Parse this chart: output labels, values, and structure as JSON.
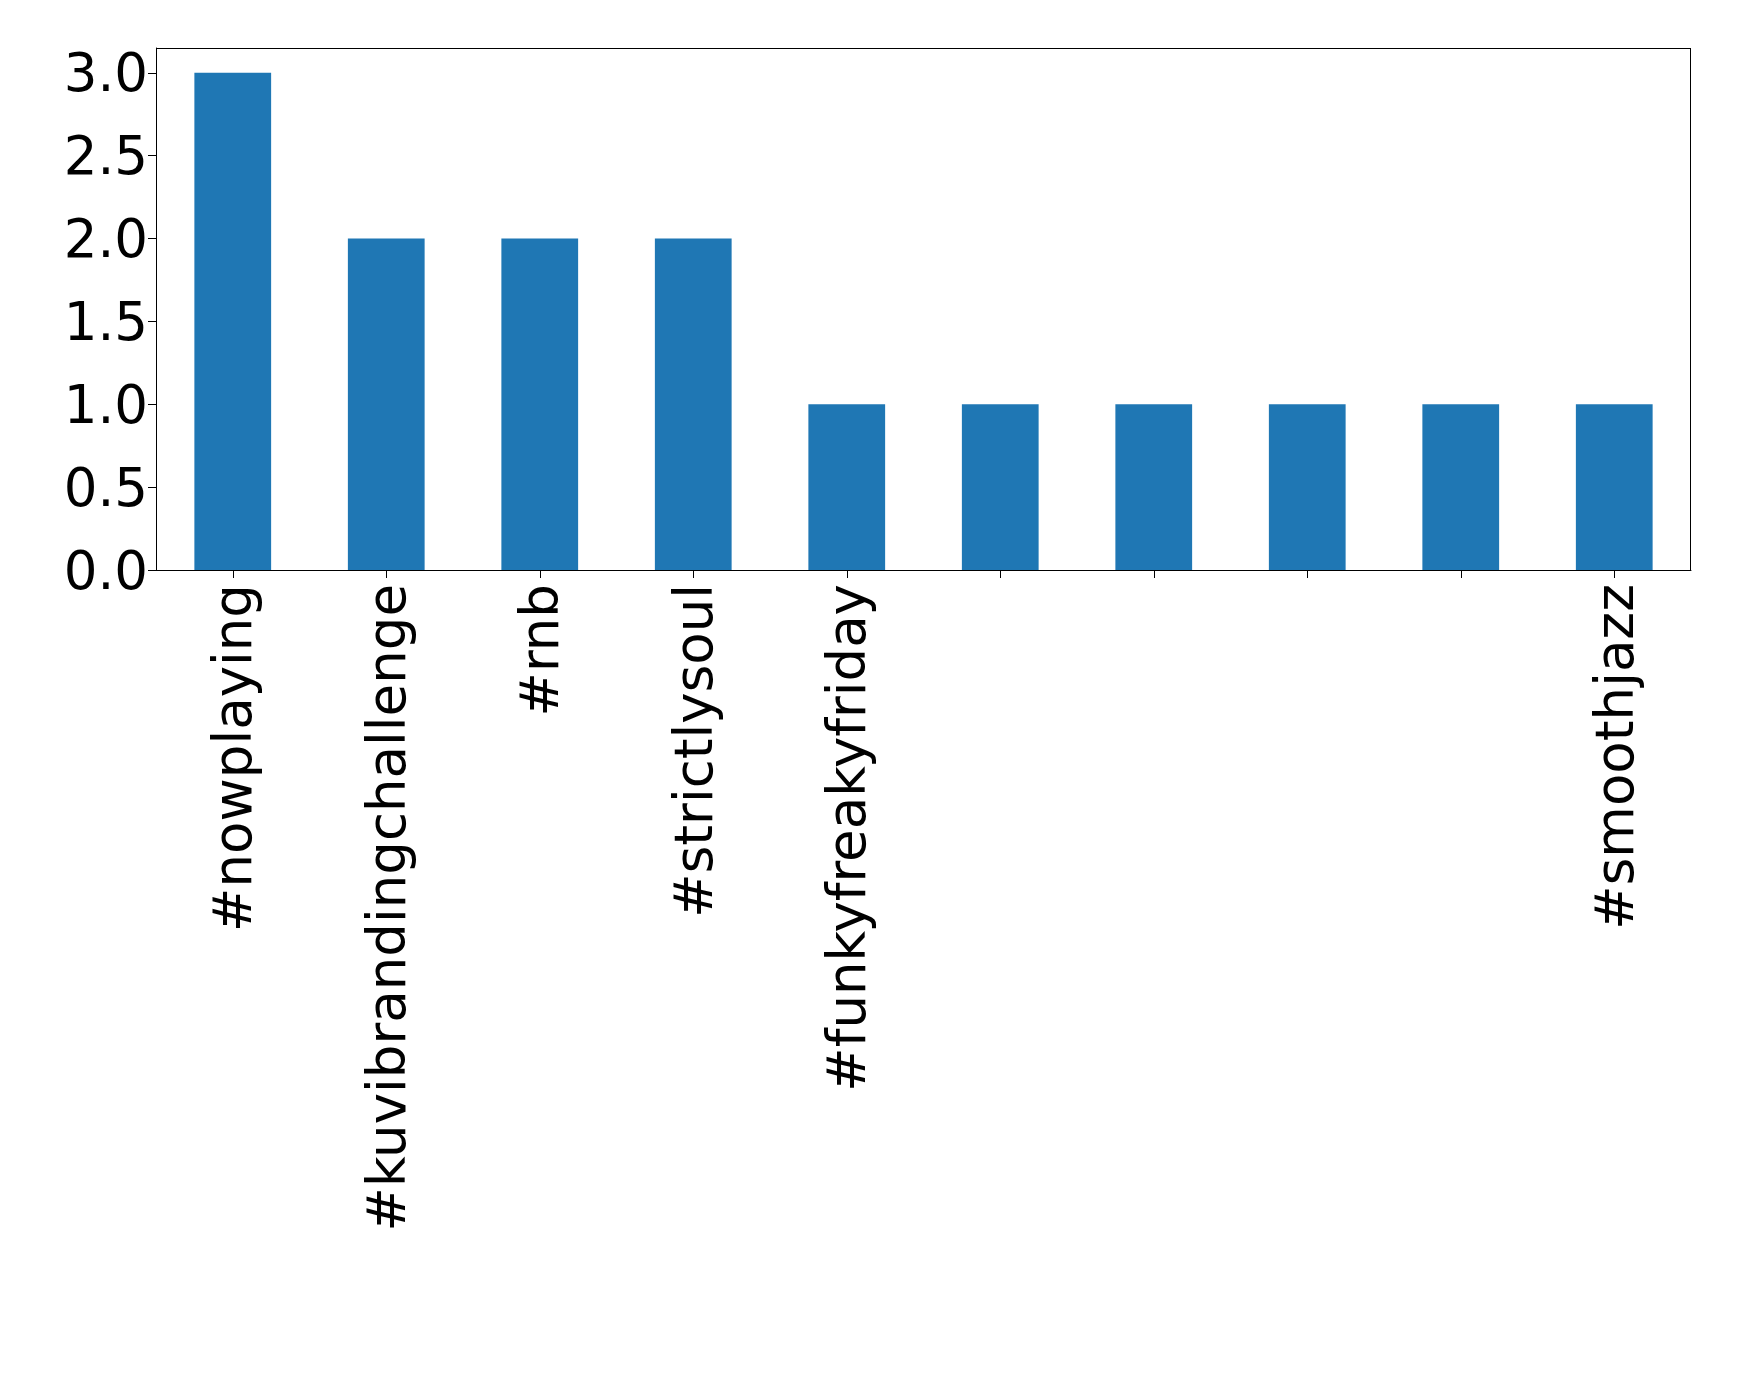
{
  "chart_data": {
    "type": "bar",
    "categories": [
      "#nowplaying",
      "#kuvibrandingchallenge",
      "#rnb",
      "#strictlysoul",
      "#funkyfreakyfriday",
      null,
      null,
      null,
      null,
      "#smoothjazz"
    ],
    "values": [
      3,
      2,
      2,
      2,
      1,
      1,
      1,
      1,
      1,
      1
    ],
    "color": "#1f77b4",
    "ylim": [
      0,
      3.15
    ],
    "yticks": [
      {
        "value": 0,
        "label": "0.0"
      },
      {
        "value": 0.5,
        "label": "0.5"
      },
      {
        "value": 1,
        "label": "1.0"
      },
      {
        "value": 1.5,
        "label": "1.5"
      },
      {
        "value": 2,
        "label": "2.0"
      },
      {
        "value": 2.5,
        "label": "2.5"
      },
      {
        "value": 3,
        "label": "3.0"
      }
    ],
    "grid": false
  }
}
